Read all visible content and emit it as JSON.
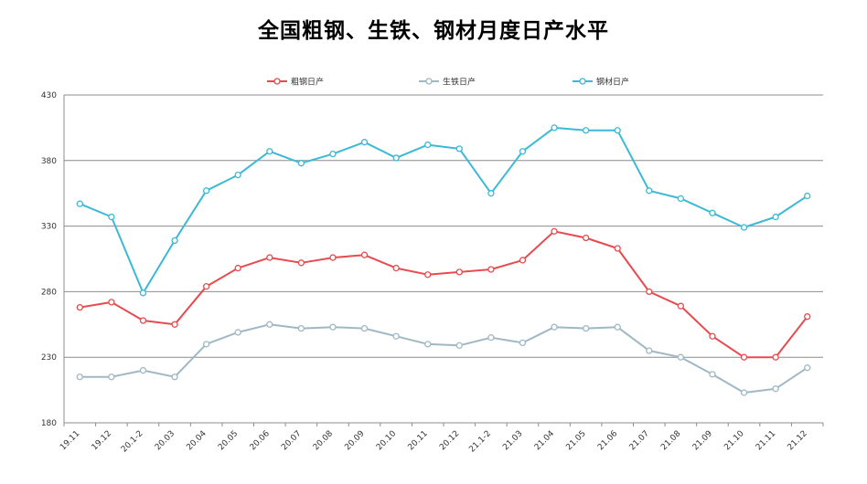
{
  "chart_data": {
    "type": "line",
    "title": "全国粗钢、生铁、钢材月度日产水平",
    "xlabel": "",
    "ylabel": "",
    "ylim": [
      180,
      430
    ],
    "yticks": [
      180,
      230,
      280,
      330,
      380,
      430
    ],
    "grid": true,
    "legend_position": "top",
    "categories": [
      "19.11",
      "19.12",
      "20.1-2",
      "20.03",
      "20.04",
      "20.05",
      "20.06",
      "20.07",
      "20.08",
      "20.09",
      "20.10",
      "20.11",
      "20.12",
      "21.1-2",
      "21.03",
      "21.04",
      "21.05",
      "21.06",
      "21.07",
      "21.08",
      "21.09",
      "21.10",
      "21.11",
      "21.12"
    ],
    "series": [
      {
        "name": "粗钢日产",
        "color": "#e84a4f",
        "values": [
          268,
          272,
          258,
          255,
          284,
          298,
          306,
          302,
          306,
          308,
          298,
          293,
          295,
          297,
          304,
          326,
          321,
          313,
          280,
          269,
          246,
          230,
          230,
          261
        ]
      },
      {
        "name": "生铁日产",
        "color": "#9fb8c4",
        "values": [
          215,
          215,
          220,
          215,
          240,
          249,
          255,
          252,
          253,
          252,
          246,
          240,
          239,
          245,
          241,
          253,
          252,
          253,
          235,
          230,
          217,
          203,
          206,
          222
        ]
      },
      {
        "name": "钢材日产",
        "color": "#3bb9d5",
        "values": [
          347,
          337,
          279,
          319,
          357,
          369,
          387,
          378,
          385,
          394,
          382,
          392,
          389,
          355,
          387,
          405,
          403,
          403,
          357,
          351,
          340,
          329,
          337,
          353
        ]
      }
    ]
  }
}
